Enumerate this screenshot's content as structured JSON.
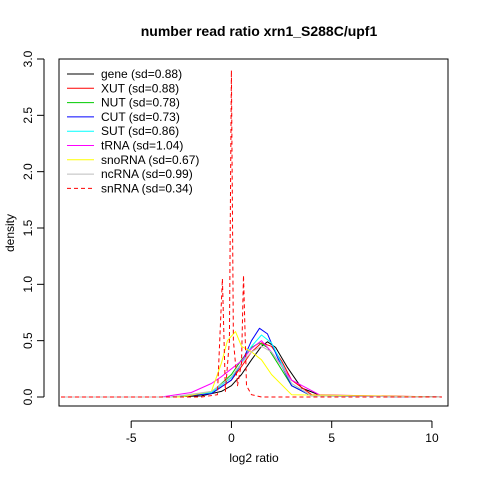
{
  "chart_data": {
    "type": "line",
    "title": "number read ratio xrn1_S288C/upf1",
    "xlabel": "log2 ratio",
    "ylabel": "density",
    "xlim": [
      -8.6,
      10.8
    ],
    "ylim": [
      -0.08,
      3.0
    ],
    "xticks": [
      -5,
      0,
      5,
      10
    ],
    "yticks": [
      0.0,
      0.5,
      1.0,
      1.5,
      2.0,
      2.5,
      3.0
    ],
    "xtick_labels": [
      "-5",
      "0",
      "5",
      "10"
    ],
    "ytick_labels": [
      "0.0",
      "0.5",
      "1.0",
      "1.5",
      "2.0",
      "2.5",
      "3.0"
    ],
    "grid": false,
    "legend_position": "top-left",
    "series": [
      {
        "name": "gene (sd=0.88)",
        "color": "#000000",
        "dash": "solid",
        "x": [
          -8.5,
          -3.0,
          -1.5,
          -0.5,
          0.0,
          0.5,
          1.0,
          1.5,
          1.8,
          2.2,
          2.8,
          3.5,
          4.5,
          10.5
        ],
        "y": [
          0.0,
          0.0,
          0.01,
          0.05,
          0.1,
          0.2,
          0.33,
          0.45,
          0.49,
          0.44,
          0.26,
          0.08,
          0.01,
          0.0
        ]
      },
      {
        "name": "XUT (sd=0.88)",
        "color": "#ff0000",
        "dash": "solid",
        "x": [
          -8.5,
          -3.0,
          -1.0,
          0.0,
          0.5,
          1.0,
          1.5,
          2.0,
          2.5,
          3.0,
          4.0,
          10.5
        ],
        "y": [
          0.0,
          0.0,
          0.03,
          0.15,
          0.27,
          0.4,
          0.48,
          0.45,
          0.32,
          0.15,
          0.02,
          0.0
        ]
      },
      {
        "name": "NUT (sd=0.78)",
        "color": "#00cc00",
        "dash": "solid",
        "x": [
          -8.5,
          -3.0,
          -1.0,
          0.0,
          0.5,
          1.0,
          1.4,
          1.8,
          2.3,
          3.0,
          4.0,
          10.5
        ],
        "y": [
          0.0,
          0.0,
          0.04,
          0.2,
          0.33,
          0.44,
          0.48,
          0.44,
          0.3,
          0.1,
          0.01,
          0.0
        ]
      },
      {
        "name": "CUT (sd=0.73)",
        "color": "#0000ff",
        "dash": "solid",
        "x": [
          -8.5,
          -3.0,
          -1.0,
          0.0,
          0.5,
          1.0,
          1.4,
          1.8,
          2.3,
          3.0,
          4.0,
          10.5
        ],
        "y": [
          0.0,
          0.0,
          0.03,
          0.15,
          0.3,
          0.5,
          0.61,
          0.56,
          0.35,
          0.1,
          0.01,
          0.0
        ]
      },
      {
        "name": "SUT (sd=0.86)",
        "color": "#00ffff",
        "dash": "solid",
        "x": [
          -8.5,
          -3.0,
          -1.0,
          0.0,
          0.5,
          1.0,
          1.5,
          2.0,
          2.5,
          3.0,
          4.0,
          10.5
        ],
        "y": [
          0.0,
          0.0,
          0.04,
          0.17,
          0.3,
          0.45,
          0.55,
          0.48,
          0.3,
          0.12,
          0.01,
          0.0
        ]
      },
      {
        "name": "tRNA (sd=1.04)",
        "color": "#ff00ff",
        "dash": "solid",
        "x": [
          -8.5,
          -3.5,
          -2.0,
          -1.0,
          -0.5,
          0.0,
          0.5,
          1.0,
          1.5,
          2.0,
          3.0,
          4.5,
          10.5
        ],
        "y": [
          0.0,
          0.0,
          0.04,
          0.12,
          0.18,
          0.25,
          0.32,
          0.43,
          0.5,
          0.4,
          0.15,
          0.01,
          0.0
        ]
      },
      {
        "name": "snoRNA (sd=0.67)",
        "color": "#ffff00",
        "dash": "solid",
        "x": [
          -8.5,
          -2.5,
          -1.0,
          -0.5,
          -0.2,
          0.2,
          0.5,
          1.0,
          1.5,
          2.0,
          3.0,
          10.5
        ],
        "y": [
          0.0,
          0.0,
          0.05,
          0.3,
          0.5,
          0.58,
          0.45,
          0.4,
          0.33,
          0.2,
          0.02,
          0.0
        ]
      },
      {
        "name": "ncRNA (sd=0.99)",
        "color": "#bebebe",
        "dash": "solid",
        "x": [
          -8.5,
          -3.0,
          -1.0,
          0.0,
          0.5,
          1.0,
          1.5,
          2.0,
          2.5,
          3.0,
          4.0,
          10.5
        ],
        "y": [
          0.0,
          0.0,
          0.05,
          0.18,
          0.3,
          0.4,
          0.45,
          0.4,
          0.28,
          0.12,
          0.01,
          0.0
        ]
      },
      {
        "name": "snRNA (sd=0.34)",
        "color": "#ff0000",
        "dash": "dashed",
        "x": [
          -8.5,
          -1.5,
          -0.7,
          -0.45,
          -0.3,
          -0.1,
          0.0,
          0.1,
          0.3,
          0.5,
          0.6,
          0.75,
          1.0,
          1.5,
          10.5
        ],
        "y": [
          0.0,
          0.0,
          0.02,
          1.05,
          0.05,
          0.5,
          2.9,
          0.5,
          0.1,
          0.3,
          1.08,
          0.1,
          0.02,
          0.0,
          0.0
        ]
      }
    ]
  }
}
